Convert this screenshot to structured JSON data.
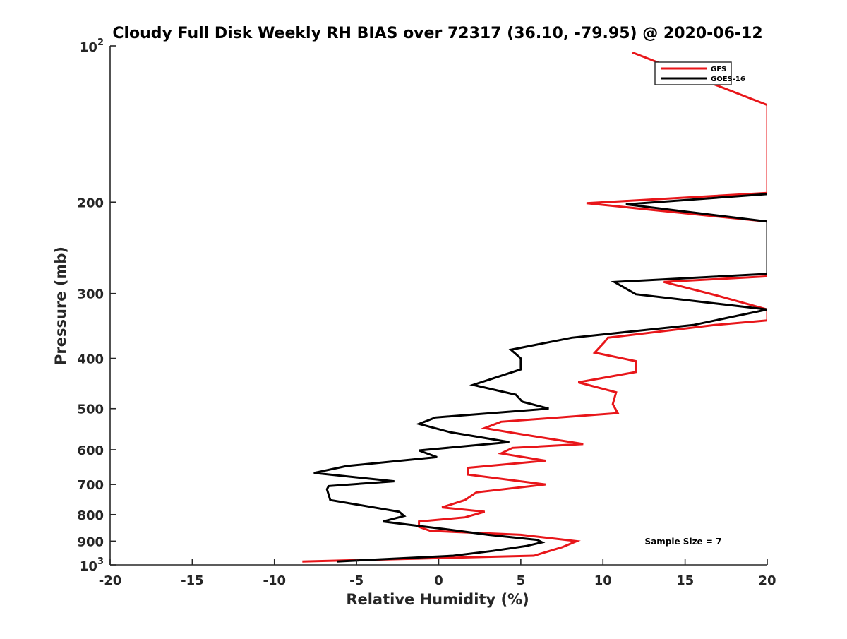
{
  "chart_data": {
    "type": "line",
    "title": "Cloudy Full Disk Weekly RH BIAS over 72317 (36.10, -79.95) @ 2020-06-12",
    "xlabel": "Relative Humidity (%)",
    "ylabel": "Pressure (mb)",
    "xlim": [
      -20,
      20
    ],
    "ylim": [
      100,
      1000
    ],
    "y_scale": "log",
    "y_reversed": true,
    "grid": false,
    "legend_position": "top-right",
    "xticks": [
      -20,
      -15,
      -10,
      -5,
      0,
      5,
      10,
      15,
      20
    ],
    "xtick_labels": [
      "-20",
      "-15",
      "-10",
      "-5",
      "0",
      "5",
      "10",
      "15",
      "20"
    ],
    "yticks": [
      {
        "value": 100,
        "base": "10",
        "exp": "2"
      },
      {
        "value": 200,
        "label": "200"
      },
      {
        "value": 300,
        "label": "300"
      },
      {
        "value": 400,
        "label": "400"
      },
      {
        "value": 500,
        "label": "500"
      },
      {
        "value": 600,
        "label": "600"
      },
      {
        "value": 700,
        "label": "700"
      },
      {
        "value": 800,
        "label": "800"
      },
      {
        "value": 900,
        "label": "900"
      },
      {
        "value": 1000,
        "base": "10",
        "exp": "3"
      }
    ],
    "annotation": "Sample Size = 7",
    "series": [
      {
        "name": "GFS",
        "color": "#e8161a",
        "points": [
          [
            -8.3,
            985
          ],
          [
            5.8,
            960
          ],
          [
            7.5,
            925
          ],
          [
            8.4,
            900
          ],
          [
            5.0,
            875
          ],
          [
            -0.5,
            860
          ],
          [
            -1.2,
            845
          ],
          [
            -1.2,
            825
          ],
          [
            1.6,
            810
          ],
          [
            2.8,
            790
          ],
          [
            0.2,
            775
          ],
          [
            1.6,
            750
          ],
          [
            2.3,
            725
          ],
          [
            6.5,
            700
          ],
          [
            1.8,
            670
          ],
          [
            1.8,
            650
          ],
          [
            6.5,
            630
          ],
          [
            3.8,
            610
          ],
          [
            4.5,
            595
          ],
          [
            8.8,
            585
          ],
          [
            5.0,
            560
          ],
          [
            2.8,
            545
          ],
          [
            3.8,
            530
          ],
          [
            10.9,
            510
          ],
          [
            10.6,
            490
          ],
          [
            10.8,
            465
          ],
          [
            8.5,
            445
          ],
          [
            12.0,
            425
          ],
          [
            12.0,
            405
          ],
          [
            9.5,
            390
          ],
          [
            10.1,
            372
          ],
          [
            10.3,
            365
          ],
          [
            16.8,
            345
          ],
          [
            20.0,
            338
          ],
          [
            20.0,
            322
          ],
          [
            17.0,
            303
          ],
          [
            13.7,
            285
          ],
          [
            20.0,
            278
          ],
          [
            20.0,
            218
          ],
          [
            9.0,
            201
          ],
          [
            20.0,
            192
          ],
          [
            20.0,
            130
          ],
          [
            11.8,
            103
          ]
        ]
      },
      {
        "name": "GOES-16",
        "color": "#000000",
        "points": [
          [
            -6.2,
            985
          ],
          [
            0.9,
            960
          ],
          [
            3.3,
            940
          ],
          [
            5.3,
            920
          ],
          [
            6.3,
            905
          ],
          [
            6.0,
            895
          ],
          [
            3.0,
            875
          ],
          [
            0.6,
            855
          ],
          [
            -3.4,
            825
          ],
          [
            -2.1,
            805
          ],
          [
            -2.4,
            790
          ],
          [
            -6.6,
            750
          ],
          [
            -6.8,
            715
          ],
          [
            -6.7,
            705
          ],
          [
            -2.7,
            690
          ],
          [
            -7.6,
            665
          ],
          [
            -5.6,
            645
          ],
          [
            -0.1,
            620
          ],
          [
            -1.2,
            602
          ],
          [
            4.3,
            580
          ],
          [
            0.7,
            555
          ],
          [
            -1.2,
            535
          ],
          [
            -0.2,
            520
          ],
          [
            6.7,
            500
          ],
          [
            5.1,
            485
          ],
          [
            4.7,
            470
          ],
          [
            2.1,
            450
          ],
          [
            5.0,
            420
          ],
          [
            5.0,
            400
          ],
          [
            4.4,
            385
          ],
          [
            8.1,
            365
          ],
          [
            15.5,
            345
          ],
          [
            20.0,
            322
          ],
          [
            12.0,
            301
          ],
          [
            10.7,
            285
          ],
          [
            20.0,
            275
          ],
          [
            20.0,
            218
          ],
          [
            11.4,
            202
          ],
          [
            20.0,
            193
          ]
        ]
      }
    ]
  }
}
